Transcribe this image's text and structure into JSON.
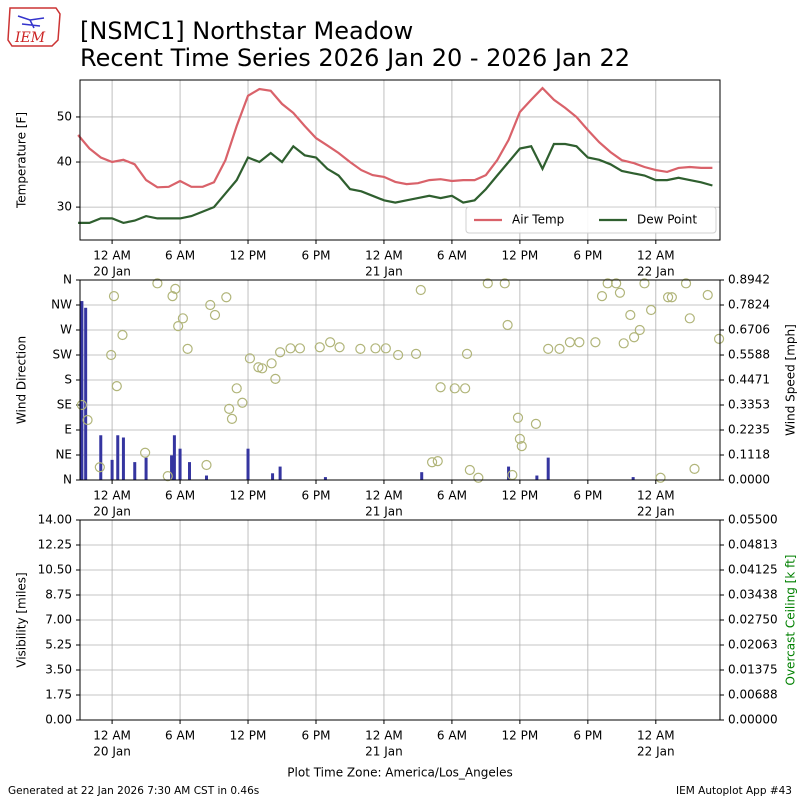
{
  "header": {
    "logo_text": "IEM",
    "title": [
      "[NSMC1] Northstar Meadow",
      "Recent Time Series 2026 Jan 20 - 2026 Jan 22"
    ]
  },
  "footer": {
    "left": "Generated at 22 Jan 2026 7:30 AM CST in 0.46s",
    "right": "IEM Autoplot App #43"
  },
  "xlabel": "Plot Time Zone: America/Los_Angeles",
  "chart_data": [
    {
      "type": "line",
      "ylabel": "Temperature [F]",
      "grid": true,
      "legend": "lower right",
      "xlim": [
        "2026-01-19T21:10",
        "2026-01-22T05:40"
      ],
      "xticks": [
        {
          "value": "2026-01-20T00:00",
          "label": [
            "12 AM",
            "20 Jan"
          ]
        },
        {
          "value": "2026-01-20T06:00",
          "label": "6 AM"
        },
        {
          "value": "2026-01-20T12:00",
          "label": "12 PM"
        },
        {
          "value": "2026-01-20T18:00",
          "label": "6 PM"
        },
        {
          "value": "2026-01-21T00:00",
          "label": [
            "12 AM",
            "21 Jan"
          ]
        },
        {
          "value": "2026-01-21T06:00",
          "label": "6 AM"
        },
        {
          "value": "2026-01-21T12:00",
          "label": "12 PM"
        },
        {
          "value": "2026-01-21T18:00",
          "label": "6 PM"
        },
        {
          "value": "2026-01-22T00:00",
          "label": [
            "12 AM",
            "22 Jan"
          ]
        }
      ],
      "ylim": [
        22.7,
        58.2
      ],
      "yticks": [
        30,
        40,
        50
      ],
      "x": [
        "2026-01-19T21:00",
        "2026-01-19T22:00",
        "2026-01-19T23:00",
        "2026-01-20T00:00",
        "2026-01-20T01:00",
        "2026-01-20T02:00",
        "2026-01-20T03:00",
        "2026-01-20T04:00",
        "2026-01-20T05:00",
        "2026-01-20T06:00",
        "2026-01-20T07:00",
        "2026-01-20T08:00",
        "2026-01-20T09:00",
        "2026-01-20T10:00",
        "2026-01-20T11:00",
        "2026-01-20T12:00",
        "2026-01-20T13:00",
        "2026-01-20T14:00",
        "2026-01-20T15:00",
        "2026-01-20T16:00",
        "2026-01-20T17:00",
        "2026-01-20T18:00",
        "2026-01-20T19:00",
        "2026-01-20T20:00",
        "2026-01-20T21:00",
        "2026-01-20T22:00",
        "2026-01-20T23:00",
        "2026-01-21T00:00",
        "2026-01-21T01:00",
        "2026-01-21T02:00",
        "2026-01-21T03:00",
        "2026-01-21T04:00",
        "2026-01-21T05:00",
        "2026-01-21T06:00",
        "2026-01-21T07:00",
        "2026-01-21T08:00",
        "2026-01-21T09:00",
        "2026-01-21T10:00",
        "2026-01-21T11:00",
        "2026-01-21T12:00",
        "2026-01-21T13:00",
        "2026-01-21T14:00",
        "2026-01-21T15:00",
        "2026-01-21T16:00",
        "2026-01-21T17:00",
        "2026-01-21T18:00",
        "2026-01-21T19:00",
        "2026-01-21T20:00",
        "2026-01-21T21:00",
        "2026-01-21T22:00",
        "2026-01-21T23:00",
        "2026-01-22T00:00",
        "2026-01-22T01:00",
        "2026-01-22T02:00",
        "2026-01-22T03:00",
        "2026-01-22T04:00",
        "2026-01-22T05:00"
      ],
      "series": [
        {
          "name": "Air Temp",
          "color": "#d9626a",
          "values": [
            46,
            43,
            41,
            40,
            40.5,
            39.5,
            36,
            34.4,
            34.5,
            35.8,
            34.5,
            34.5,
            35.5,
            40.4,
            48,
            54.7,
            56.2,
            55.8,
            52.9,
            50.9,
            48,
            45.3,
            43.7,
            42,
            40,
            38.2,
            37.1,
            36.7,
            35.6,
            35.1,
            35.3,
            36,
            36.2,
            35.8,
            36,
            36,
            37.1,
            40.4,
            44.9,
            51.1,
            53.8,
            56.4,
            53.8,
            52,
            50,
            47.1,
            44.4,
            42.2,
            40.4,
            39.8,
            38.9,
            38.2,
            37.8,
            38.7,
            38.9,
            38.7,
            38.7
          ]
        },
        {
          "name": "Dew Point",
          "color": "#2f5f2f",
          "values": [
            26.5,
            26.5,
            27.5,
            27.5,
            26.5,
            27,
            28,
            27.5,
            27.5,
            27.5,
            28,
            29,
            30,
            33,
            36,
            41,
            40,
            42,
            40,
            43.5,
            41.5,
            41,
            38.5,
            37,
            34,
            33.5,
            32.5,
            31.5,
            31,
            31.5,
            32,
            32.5,
            32,
            32.5,
            31,
            31.5,
            34,
            37,
            40,
            43,
            43.5,
            38.5,
            44,
            44,
            43.5,
            41,
            40.5,
            39.5,
            38,
            37.5,
            37,
            36,
            36,
            36.5,
            36,
            35.5,
            34.8
          ]
        }
      ]
    },
    {
      "type": "combo",
      "ylabel": "Wind Direction",
      "y2label": "Wind Speed [mph]",
      "grid": true,
      "xlim": [
        "2026-01-19T21:10",
        "2026-01-22T05:40"
      ],
      "xticks": [
        {
          "value": "2026-01-20T00:00",
          "label": [
            "12 AM",
            "20 Jan"
          ]
        },
        {
          "value": "2026-01-20T06:00",
          "label": "6 AM"
        },
        {
          "value": "2026-01-20T12:00",
          "label": "12 PM"
        },
        {
          "value": "2026-01-20T18:00",
          "label": "6 PM"
        },
        {
          "value": "2026-01-21T00:00",
          "label": [
            "12 AM",
            "21 Jan"
          ]
        },
        {
          "value": "2026-01-21T06:00",
          "label": "6 AM"
        },
        {
          "value": "2026-01-21T12:00",
          "label": "12 PM"
        },
        {
          "value": "2026-01-21T18:00",
          "label": "6 PM"
        },
        {
          "value": "2026-01-22T00:00",
          "label": [
            "12 AM",
            "22 Jan"
          ]
        }
      ],
      "ylim": [
        0,
        360
      ],
      "yticks": [
        {
          "value": 0,
          "label": "N"
        },
        {
          "value": 45,
          "label": "NE"
        },
        {
          "value": 90,
          "label": "E"
        },
        {
          "value": 135,
          "label": "SE"
        },
        {
          "value": 180,
          "label": "S"
        },
        {
          "value": 225,
          "label": "SW"
        },
        {
          "value": 270,
          "label": "W"
        },
        {
          "value": 315,
          "label": "NW"
        },
        {
          "value": 360,
          "label": "N"
        }
      ],
      "y2lim": [
        0,
        0.8942
      ],
      "y2ticks": [
        {
          "value": 0,
          "label": "0.0000"
        },
        0.1118,
        0.2235,
        0.3353,
        0.4471,
        0.5588,
        0.6706,
        0.7824,
        0.8942
      ],
      "series": [
        {
          "type": "bar",
          "axis": "y2",
          "color": "#3535a0",
          "x": [
            "2026-01-19T21:20",
            "2026-01-19T21:40",
            "2026-01-19T23:00",
            "2026-01-20T00:00",
            "2026-01-20T00:30",
            "2026-01-20T01:00",
            "2026-01-20T02:00",
            "2026-01-20T03:00",
            "2026-01-20T05:15",
            "2026-01-20T05:30",
            "2026-01-20T06:00",
            "2026-01-20T06:50",
            "2026-01-20T08:20",
            "2026-01-20T12:00",
            "2026-01-20T14:10",
            "2026-01-20T14:50",
            "2026-01-20T18:50",
            "2026-01-21T03:20",
            "2026-01-21T11:00",
            "2026-01-21T13:30",
            "2026-01-21T14:30",
            "2026-01-21T22:00"
          ],
          "values": [
            0.8,
            0.77,
            0.2,
            0.09,
            0.2,
            0.19,
            0.08,
            0.1,
            0.11,
            0.2,
            0.14,
            0.08,
            0.02,
            0.14,
            0.03,
            0.06,
            0.013,
            0.035,
            0.06,
            0.02,
            0.1,
            0.013
          ]
        },
        {
          "type": "scatter",
          "color": "#b1b57a",
          "x": [
            "2026-01-19T21:20",
            "2026-01-19T21:50",
            "2026-01-19T22:55",
            "2026-01-19T23:55",
            "2026-01-20T00:10",
            "2026-01-20T00:25",
            "2026-01-20T00:55",
            "2026-01-20T02:55",
            "2026-01-20T04:00",
            "2026-01-20T04:55",
            "2026-01-20T05:20",
            "2026-01-20T05:35",
            "2026-01-20T05:50",
            "2026-01-20T06:15",
            "2026-01-20T06:40",
            "2026-01-20T08:20",
            "2026-01-20T08:40",
            "2026-01-20T09:05",
            "2026-01-20T10:05",
            "2026-01-20T10:20",
            "2026-01-20T10:35",
            "2026-01-20T11:00",
            "2026-01-20T11:30",
            "2026-01-20T12:10",
            "2026-01-20T12:55",
            "2026-01-20T13:15",
            "2026-01-20T14:05",
            "2026-01-20T14:25",
            "2026-01-20T14:50",
            "2026-01-20T15:45",
            "2026-01-20T16:35",
            "2026-01-20T18:20",
            "2026-01-20T19:15",
            "2026-01-20T20:05",
            "2026-01-20T21:55",
            "2026-01-20T23:15",
            "2026-01-21T00:10",
            "2026-01-21T01:15",
            "2026-01-21T02:50",
            "2026-01-21T03:15",
            "2026-01-21T04:15",
            "2026-01-21T04:45",
            "2026-01-21T05:00",
            "2026-01-21T06:15",
            "2026-01-21T07:10",
            "2026-01-21T07:20",
            "2026-01-21T07:35",
            "2026-01-21T08:20",
            "2026-01-21T09:10",
            "2026-01-21T10:40",
            "2026-01-21T10:55",
            "2026-01-21T11:20",
            "2026-01-21T11:50",
            "2026-01-21T12:00",
            "2026-01-21T12:10",
            "2026-01-21T13:25",
            "2026-01-21T14:30",
            "2026-01-21T15:30",
            "2026-01-21T16:25",
            "2026-01-21T17:15",
            "2026-01-21T18:40",
            "2026-01-21T19:15",
            "2026-01-21T19:45",
            "2026-01-21T20:30",
            "2026-01-21T20:50",
            "2026-01-21T21:10",
            "2026-01-21T21:45",
            "2026-01-21T22:05",
            "2026-01-21T22:35",
            "2026-01-21T23:00",
            "2026-01-21T23:35",
            "2026-01-22T00:25",
            "2026-01-22T01:05",
            "2026-01-22T01:25",
            "2026-01-22T02:40",
            "2026-01-22T03:00",
            "2026-01-22T03:25",
            "2026-01-22T04:35",
            "2026-01-22T05:35"
          ],
          "values": [
            135,
            108,
            23,
            225,
            331,
            169,
            261,
            49,
            354,
            7,
            331,
            344,
            277,
            291,
            236,
            27,
            315,
            297,
            329,
            128,
            110,
            165,
            139,
            219,
            203,
            201,
            210,
            182,
            230,
            237,
            237,
            239,
            248,
            239,
            236,
            237,
            237,
            225,
            227,
            342,
            32,
            34,
            167,
            165,
            165,
            227,
            18,
            4,
            354,
            354,
            279,
            9,
            112,
            74,
            61,
            101,
            236,
            236,
            248,
            248,
            248,
            331,
            354,
            354,
            337,
            246,
            297,
            257,
            270,
            354,
            306,
            4,
            329,
            329,
            354,
            291,
            20,
            333,
            254
          ]
        }
      ]
    },
    {
      "type": "line",
      "ylabel": "Visibility [miles]",
      "y2label": "Overcast Ceiling [k ft]",
      "y2color": "#008000",
      "grid": true,
      "xlim": [
        "2026-01-19T21:10",
        "2026-01-22T05:40"
      ],
      "xticks": [
        {
          "value": "2026-01-20T00:00",
          "label": [
            "12 AM",
            "20 Jan"
          ]
        },
        {
          "value": "2026-01-20T06:00",
          "label": "6 AM"
        },
        {
          "value": "2026-01-20T12:00",
          "label": "12 PM"
        },
        {
          "value": "2026-01-20T18:00",
          "label": "6 PM"
        },
        {
          "value": "2026-01-21T00:00",
          "label": [
            "12 AM",
            "21 Jan"
          ]
        },
        {
          "value": "2026-01-21T06:00",
          "label": "6 AM"
        },
        {
          "value": "2026-01-21T12:00",
          "label": "12 PM"
        },
        {
          "value": "2026-01-21T18:00",
          "label": "6 PM"
        },
        {
          "value": "2026-01-22T00:00",
          "label": [
            "12 AM",
            "22 Jan"
          ]
        }
      ],
      "ylim": [
        0,
        14
      ],
      "yticks": [
        {
          "value": 0,
          "label": "0.00"
        },
        1.75,
        {
          "value": 3.5,
          "label": "3.50"
        },
        5.25,
        {
          "value": 7,
          "label": "7.00"
        },
        8.75,
        {
          "value": 10.5,
          "label": "10.50"
        },
        12.25,
        {
          "value": 14,
          "label": "14.00"
        }
      ],
      "y2lim": [
        0,
        0.055
      ],
      "y2ticks": [
        {
          "value": 0,
          "label": "0.00000"
        },
        {
          "value": 0.006875,
          "label": "0.00688"
        },
        {
          "value": 0.01375,
          "label": "0.01375"
        },
        {
          "value": 0.020625,
          "label": "0.02063"
        },
        {
          "value": 0.0275,
          "label": "0.02750"
        },
        {
          "value": 0.034375,
          "label": "0.03438"
        },
        {
          "value": 0.04125,
          "label": "0.04125"
        },
        {
          "value": 0.048125,
          "label": "0.04813"
        },
        {
          "value": 0.055,
          "label": "0.05500"
        }
      ],
      "series": []
    }
  ]
}
